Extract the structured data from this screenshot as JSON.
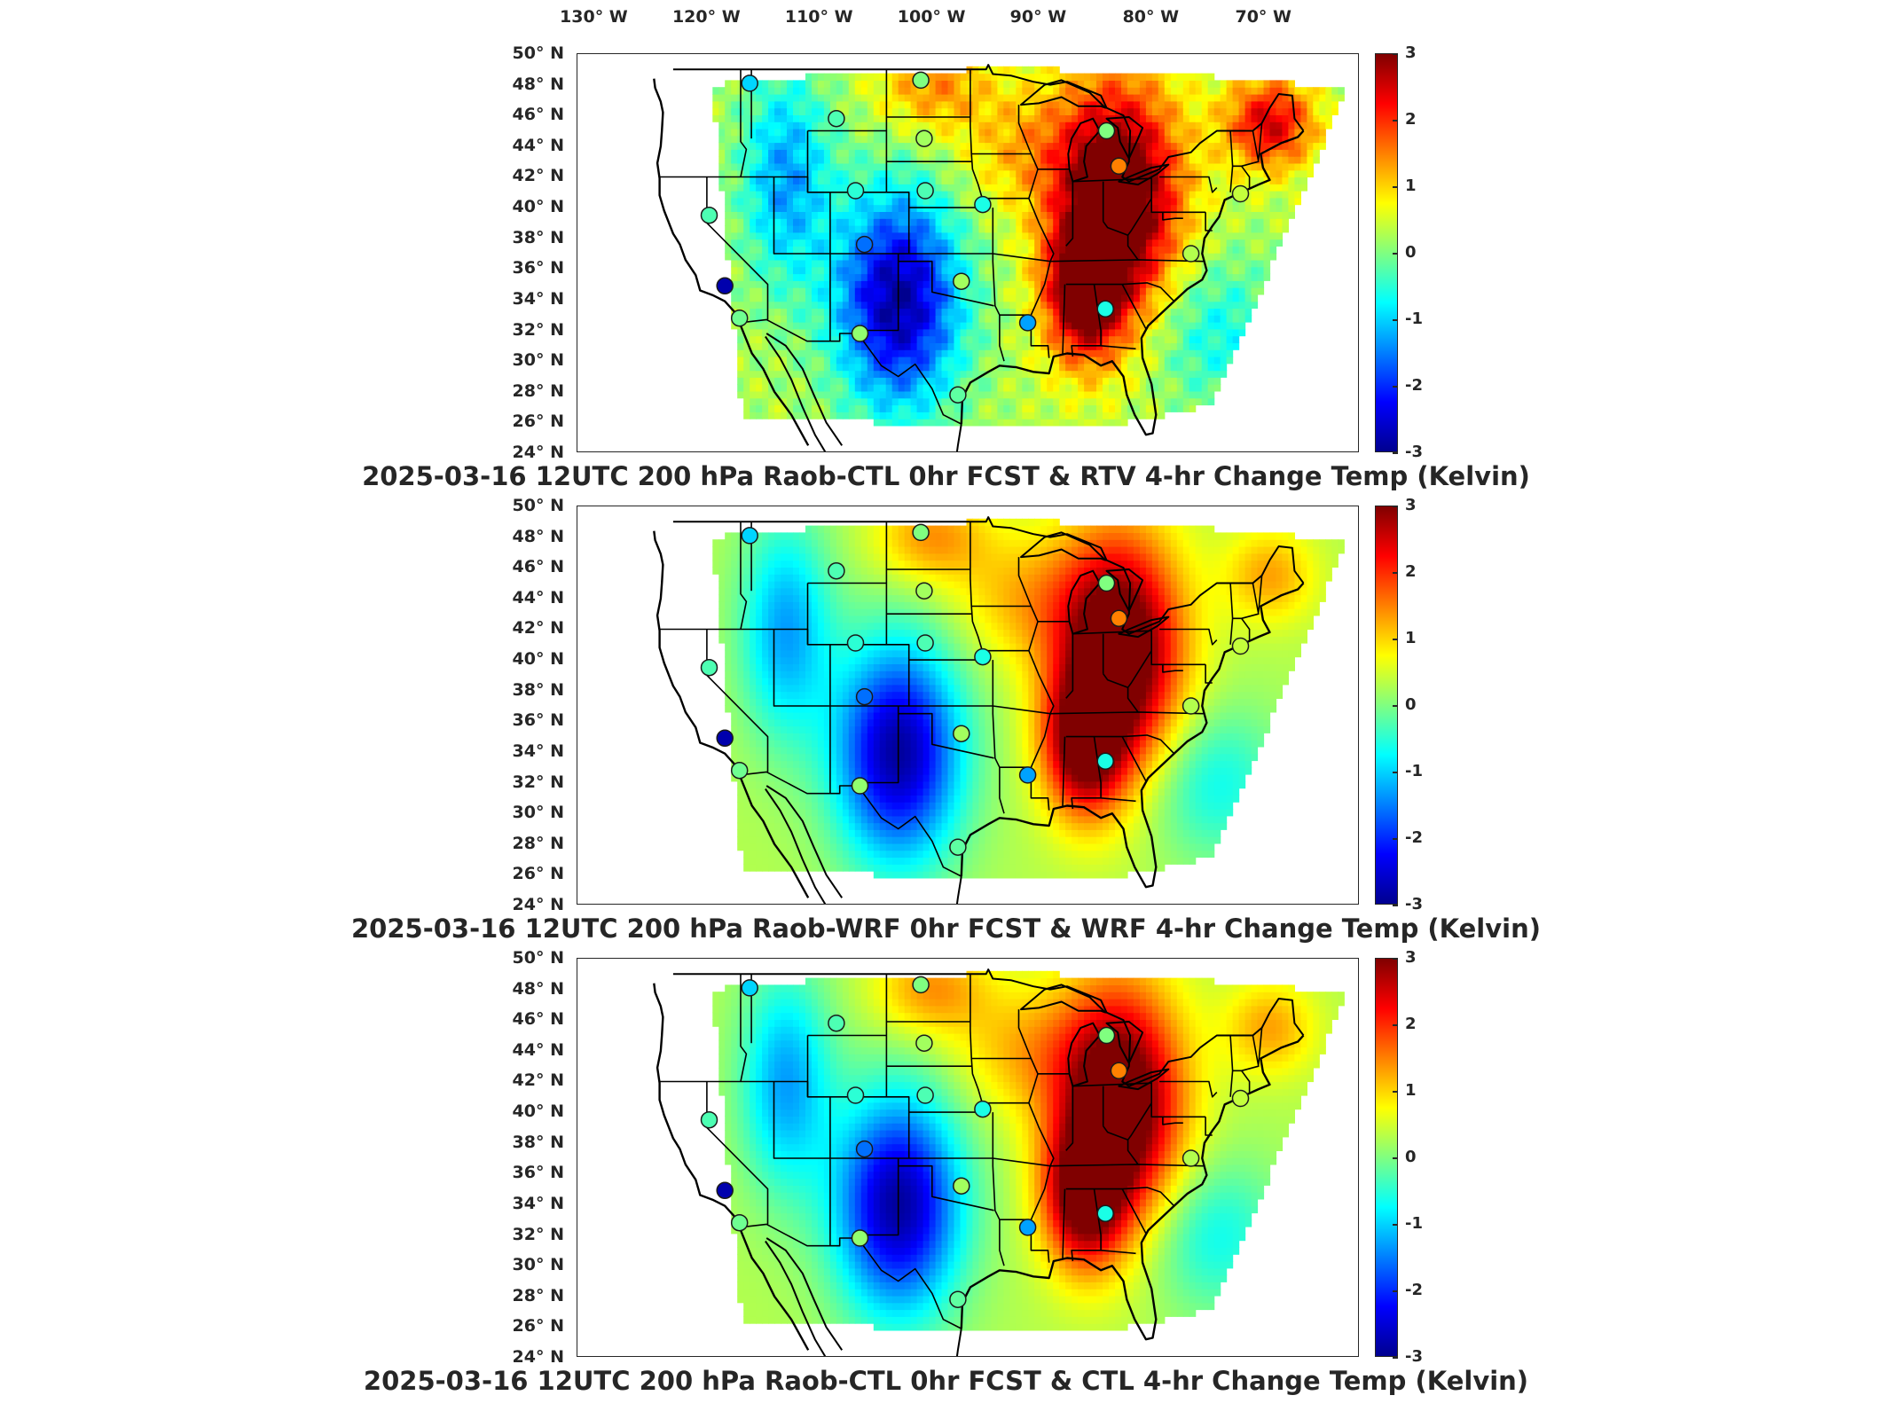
{
  "lon_labels": [
    "130° W",
    "120° W",
    "110° W",
    "100° W",
    "90° W",
    "80° W",
    "70° W"
  ],
  "lat_labels": [
    "50° N",
    "48° N",
    "46° N",
    "44° N",
    "42° N",
    "40° N",
    "38° N",
    "36° N",
    "34° N",
    "32° N",
    "30° N",
    "28° N",
    "26° N",
    "24° N"
  ],
  "colorbar": {
    "ticks": [
      "3",
      "2",
      "1",
      "0",
      "-1",
      "-2",
      "-3"
    ],
    "range": [
      -3,
      3
    ],
    "colormap": "jet",
    "unit": "Kelvin"
  },
  "panels": [
    {
      "title": "2025-03-16 12UTC 200 hPa Raob-CTL 0hr FCST & RTV 4-hr Change Temp (Kelvin)"
    },
    {
      "title": "2025-03-16 12UTC 200 hPa Raob-WRF 0hr FCST & WRF 4-hr Change Temp (Kelvin)"
    },
    {
      "title": "2025-03-16 12UTC 200 hPa Raob-CTL 0hr FCST & CTL 4-hr Change Temp (Kelvin)"
    }
  ],
  "raob_stations": [
    {
      "lon": -116.2,
      "lat": 48.1,
      "value": -1.0
    },
    {
      "lon": -101.0,
      "lat": 48.3,
      "value": 0.0
    },
    {
      "lon": -108.5,
      "lat": 45.8,
      "value": -0.3
    },
    {
      "lon": -100.7,
      "lat": 44.5,
      "value": 0.2
    },
    {
      "lon": -84.5,
      "lat": 45.0,
      "value": 0.0
    },
    {
      "lon": -83.4,
      "lat": 42.7,
      "value": 1.5
    },
    {
      "lon": -106.8,
      "lat": 41.1,
      "value": -0.5
    },
    {
      "lon": -100.6,
      "lat": 41.1,
      "value": -0.3
    },
    {
      "lon": -95.5,
      "lat": 40.2,
      "value": -0.6
    },
    {
      "lon": -119.8,
      "lat": 39.5,
      "value": -0.3
    },
    {
      "lon": -106.0,
      "lat": 37.6,
      "value": -1.6
    },
    {
      "lon": -97.4,
      "lat": 35.2,
      "value": 0.2
    },
    {
      "lon": -118.4,
      "lat": 34.9,
      "value": -2.8
    },
    {
      "lon": -91.5,
      "lat": 32.5,
      "value": -1.3
    },
    {
      "lon": -84.6,
      "lat": 33.4,
      "value": -0.6
    },
    {
      "lon": -117.1,
      "lat": 32.8,
      "value": -0.1
    },
    {
      "lon": -106.4,
      "lat": 31.8,
      "value": 0.1
    },
    {
      "lon": -97.7,
      "lat": 27.8,
      "value": -0.2
    },
    {
      "lon": -77.0,
      "lat": 37.0,
      "value": 0.3
    },
    {
      "lon": -72.6,
      "lat": 40.9,
      "value": 0.4
    }
  ]
}
